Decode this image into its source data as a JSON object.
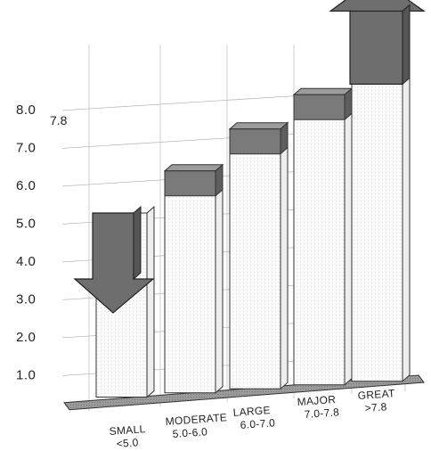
{
  "chart_data": {
    "type": "bar",
    "categories": [
      {
        "line1": "SMALL",
        "line2": "<5.0"
      },
      {
        "line1": "MODERATE",
        "line2": "5.0-6.0"
      },
      {
        "line1": "LARGE",
        "line2": "6.0-7.0"
      },
      {
        "line1": "MAJOR",
        "line2": "7.0-7.8"
      },
      {
        "line1": "GREAT",
        "line2": ">7.8"
      }
    ],
    "values": [
      5.0,
      6.0,
      7.0,
      7.8,
      8.5
    ],
    "arrows": [
      "down",
      null,
      null,
      null,
      "up"
    ],
    "y_ticks": [
      "1.0",
      "2.0",
      "3.0",
      "4.0",
      "5.0",
      "6.0",
      "7.0",
      "8.0"
    ],
    "annotation": "7.8",
    "ylim": [
      0,
      8.5
    ],
    "grid": true,
    "colors": {
      "cap": "#7a7a7a",
      "arrow": "#6e6e6e",
      "base": "#9a9a9a",
      "bar": "#fcfcfc",
      "bar_side": "#eeeeee"
    }
  }
}
